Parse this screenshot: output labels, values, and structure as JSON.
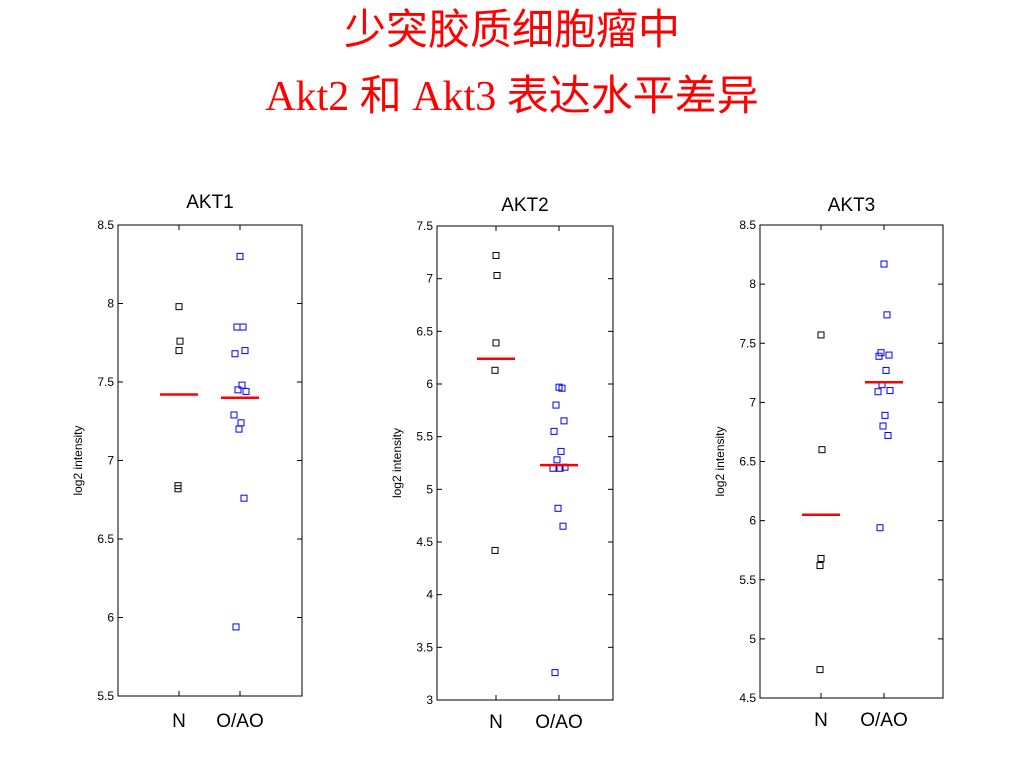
{
  "slide": {
    "title_line1": "少突胶质细胞瘤中",
    "title_line2": "Akt2 和 Akt3 表达水平差异"
  },
  "chart_data": [
    {
      "type": "scatter",
      "title": "AKT1",
      "ylabel": "log2 intensity",
      "categories": [
        "N",
        "O/AO"
      ],
      "ylim": [
        5.5,
        8.5
      ],
      "yticks": [
        5.5,
        6,
        6.5,
        7,
        7.5,
        8,
        8.5
      ],
      "ytick_labels": [
        "5.5",
        "6",
        "6.5",
        "7",
        "7.5",
        "8",
        "8.5"
      ],
      "grid": false,
      "series": [
        {
          "category": "N",
          "color": "#000000",
          "values": [
            7.98,
            7.76,
            7.7,
            6.84,
            6.82
          ]
        },
        {
          "category": "O/AO",
          "color": "#0000ff",
          "values": [
            8.3,
            7.85,
            7.85,
            7.7,
            7.68,
            7.48,
            7.45,
            7.44,
            7.29,
            7.24,
            7.2,
            6.76,
            5.94
          ]
        }
      ],
      "means": [
        7.42,
        7.4
      ]
    },
    {
      "type": "scatter",
      "title": "AKT2",
      "ylabel": "log2 intensity",
      "categories": [
        "N",
        "O/AO"
      ],
      "ylim": [
        3,
        7.5
      ],
      "yticks": [
        3,
        3.5,
        4,
        4.5,
        5,
        5.5,
        6,
        6.5,
        7,
        7.5
      ],
      "ytick_labels": [
        "3",
        "3.5",
        "4",
        "4.5",
        "5",
        "5.5",
        "6",
        "6.5",
        "7",
        "7.5"
      ],
      "grid": false,
      "series": [
        {
          "category": "N",
          "color": "#000000",
          "values": [
            7.22,
            7.03,
            6.39,
            6.13,
            4.42
          ]
        },
        {
          "category": "O/AO",
          "color": "#0000ff",
          "values": [
            5.97,
            5.96,
            5.8,
            5.65,
            5.55,
            5.36,
            5.28,
            5.21,
            5.2,
            5.2,
            4.82,
            4.65,
            3.26
          ]
        }
      ],
      "means": [
        6.24,
        5.23
      ]
    },
    {
      "type": "scatter",
      "title": "AKT3",
      "ylabel": "log2 intensity",
      "categories": [
        "N",
        "O/AO"
      ],
      "ylim": [
        4.5,
        8.5
      ],
      "yticks": [
        4.5,
        5,
        5.5,
        6,
        6.5,
        7,
        7.5,
        8,
        8.5
      ],
      "ytick_labels": [
        "4.5",
        "5",
        "5.5",
        "6",
        "6.5",
        "7",
        "7.5",
        "8",
        "8.5"
      ],
      "grid": false,
      "series": [
        {
          "category": "N",
          "color": "#000000",
          "values": [
            7.57,
            6.6,
            5.68,
            5.62,
            4.74
          ]
        },
        {
          "category": "O/AO",
          "color": "#0000ff",
          "values": [
            8.17,
            7.74,
            7.42,
            7.4,
            7.39,
            7.27,
            7.15,
            7.1,
            7.09,
            6.89,
            6.8,
            6.72,
            5.94
          ]
        }
      ],
      "means": [
        6.05,
        7.17
      ]
    }
  ]
}
